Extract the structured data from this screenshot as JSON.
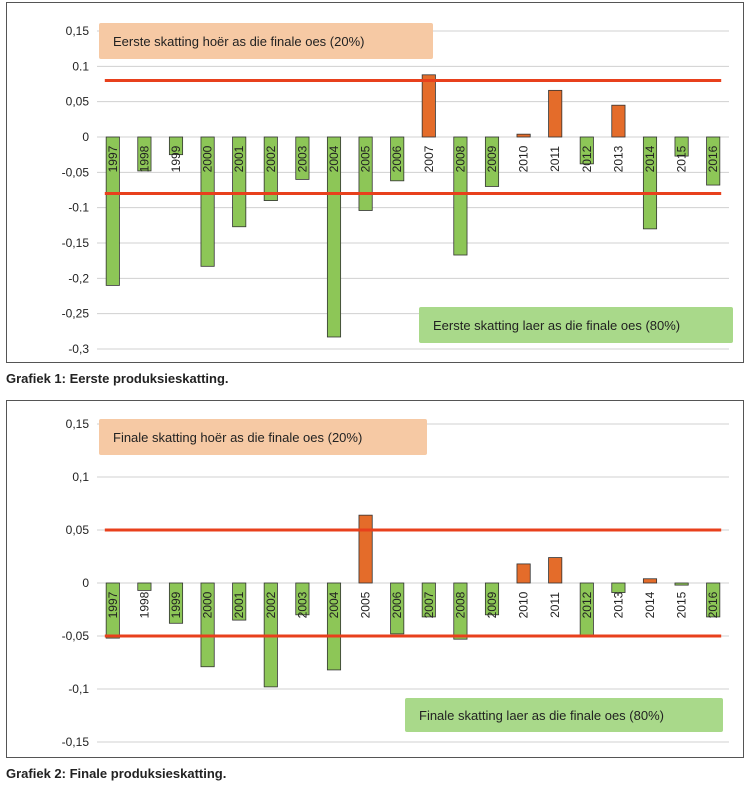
{
  "colors": {
    "positive_bar": "#e46c2a",
    "negative_bar": "#8dc657",
    "bar_stroke": "#333333",
    "threshold_line": "#e8401c",
    "grid": "#d0d0d0",
    "orange_box": "#f6c9a4",
    "green_box": "#a9d98a"
  },
  "charts": [
    {
      "caption": "Grafiek 1: Eerste produksieskatting.",
      "boxes": {
        "upper": "Eerste skatting hoër as die finale oes (20%)",
        "lower": "Eerste skatting laer as die finale oes (80%)"
      }
    },
    {
      "caption": "Grafiek 2: Finale produksieskatting.",
      "boxes": {
        "upper": "Finale skatting hoër as die finale oes (20%)",
        "lower": "Finale skatting laer as die finale oes (80%)"
      }
    }
  ],
  "chart_data": [
    {
      "type": "bar",
      "categories": [
        "1997",
        "1998",
        "1999",
        "2000",
        "2001",
        "2002",
        "2003",
        "2004",
        "2005",
        "2006",
        "2007",
        "2008",
        "2009",
        "2010",
        "2011",
        "2012",
        "2013",
        "2014",
        "2015",
        "2016"
      ],
      "values": [
        -0.21,
        -0.048,
        -0.025,
        -0.183,
        -0.127,
        -0.09,
        -0.06,
        -0.283,
        -0.104,
        -0.062,
        0.088,
        -0.167,
        -0.07,
        0.004,
        0.066,
        -0.038,
        0.045,
        -0.13,
        -0.027,
        -0.068
      ],
      "yticks": [
        "0,15",
        "0.1",
        "0,05",
        "0",
        "-0,05",
        "-0.1",
        "-0,15",
        "-0,2",
        "-0,25",
        "-0,3"
      ],
      "ylim": [
        -0.3,
        0.15
      ],
      "reference_lines": [
        0.08,
        -0.08
      ],
      "grid": true
    },
    {
      "type": "bar",
      "categories": [
        "1997",
        "1998",
        "1999",
        "2000",
        "2001",
        "2002",
        "2003",
        "2004",
        "2005",
        "2006",
        "2007",
        "2008",
        "2009",
        "2010",
        "2011",
        "2012",
        "2013",
        "2014",
        "2015",
        "2016"
      ],
      "values": [
        -0.052,
        -0.007,
        -0.038,
        -0.079,
        -0.035,
        -0.098,
        -0.03,
        -0.082,
        0.064,
        -0.048,
        -0.032,
        -0.053,
        -0.03,
        0.018,
        0.024,
        -0.051,
        -0.009,
        0.004,
        -0.002,
        -0.032
      ],
      "yticks": [
        "0,15",
        "0,1",
        "0,05",
        "0",
        "-0,05",
        "-0,1",
        "-0,15"
      ],
      "ylim": [
        -0.15,
        0.15
      ],
      "reference_lines": [
        0.05,
        -0.05
      ],
      "grid": true
    }
  ]
}
